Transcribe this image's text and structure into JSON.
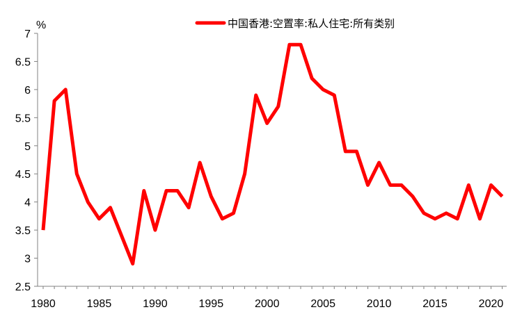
{
  "chart_data": {
    "type": "line",
    "title": "",
    "xlabel": "",
    "ylabel": "%",
    "xlim": [
      1980,
      2021
    ],
    "ylim": [
      2.5,
      7
    ],
    "x_ticks": [
      "1980",
      "1985",
      "1990",
      "1995",
      "2000",
      "2005",
      "2010",
      "2015",
      "2020"
    ],
    "y_ticks": [
      "2.5",
      "3",
      "3.5",
      "4",
      "4.5",
      "5",
      "5.5",
      "6",
      "6.5",
      "7"
    ],
    "grid": false,
    "legend_position": "top-center",
    "series": [
      {
        "name": "中国香港:空置率:私人住宅:所有类别",
        "color": "#ff0000",
        "x": [
          1980,
          1981,
          1982,
          1983,
          1984,
          1985,
          1986,
          1987,
          1988,
          1989,
          1990,
          1991,
          1992,
          1993,
          1994,
          1995,
          1996,
          1997,
          1998,
          1999,
          2000,
          2001,
          2002,
          2003,
          2004,
          2005,
          2006,
          2007,
          2008,
          2009,
          2010,
          2011,
          2012,
          2013,
          2014,
          2015,
          2016,
          2017,
          2018,
          2019,
          2020,
          2021
        ],
        "values": [
          3.5,
          5.8,
          6.0,
          4.5,
          4.0,
          3.7,
          3.9,
          3.4,
          2.9,
          4.2,
          3.5,
          4.2,
          4.2,
          3.9,
          4.7,
          4.1,
          3.7,
          3.8,
          4.5,
          5.9,
          5.4,
          5.7,
          6.8,
          6.8,
          6.2,
          6.0,
          5.9,
          4.9,
          4.9,
          4.3,
          4.7,
          4.3,
          4.3,
          4.1,
          3.8,
          3.7,
          3.8,
          3.7,
          4.3,
          3.7,
          4.3,
          4.1
        ]
      }
    ]
  }
}
